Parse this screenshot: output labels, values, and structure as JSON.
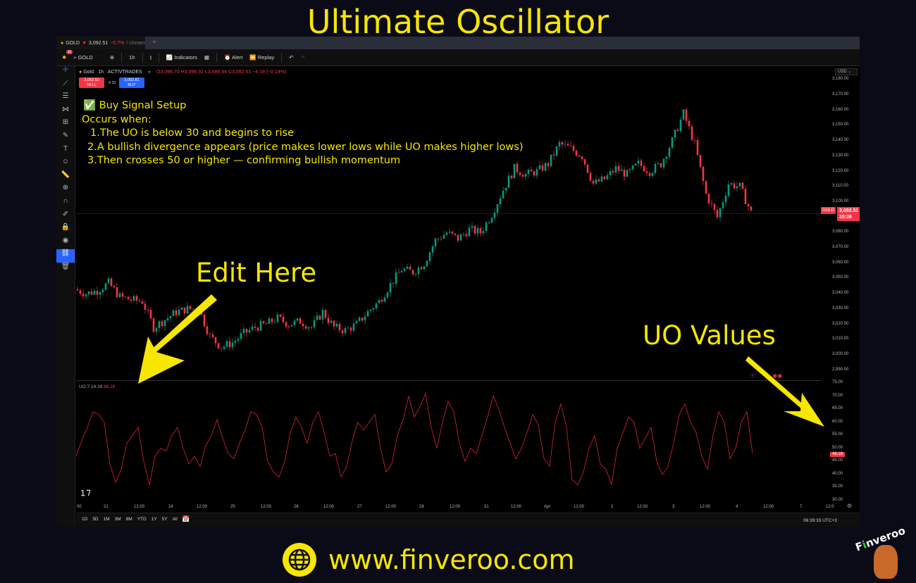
{
  "title": "Ultimate Oscillator",
  "tab": {
    "symbol": "GOLD",
    "arrow": "▼",
    "price": "3,092.51",
    "change": "−0.7%",
    "suffix": "/ Unnam",
    "add": "+"
  },
  "toolbar": {
    "badge": "11",
    "search": "GOLD",
    "interval": "1h",
    "indicators": "Indicators",
    "alert": "Alert",
    "replay": "Replay"
  },
  "legend": {
    "name": "Gold · 1h · ACTIVTRADES",
    "ohlc": "O3,096.70 H3,098.92 L3,086.94 C3,092.51 −4.19 (−0.14%)",
    "sell_price": "3,092.50",
    "sell": "SELL",
    "spread": "0.31",
    "buy_price": "3,092.81",
    "buy": "BUY"
  },
  "currency": "USD",
  "price_axis": [
    "3,180.00",
    "3,170.00",
    "3,160.00",
    "3,150.00",
    "3,140.00",
    "3,130.00",
    "3,120.00",
    "3,110.00",
    "3,100.00",
    "3,080.00",
    "3,070.00",
    "3,060.00",
    "3,050.00",
    "3,040.00",
    "3,030.00",
    "3,020.00",
    "3,010.00",
    "3,000.00",
    "2,990.00"
  ],
  "price_tag": {
    "symbol": "GOLD",
    "price": "3,092.51",
    "countdown": "20:26"
  },
  "uo": {
    "label": "UO 7 14 28",
    "value": "48.16",
    "axis": [
      "75.00",
      "70.00",
      "65.00",
      "60.00",
      "55.00",
      "50.00",
      "45.00",
      "40.00",
      "35.00",
      "30.00"
    ]
  },
  "time_axis": [
    "00",
    "21",
    "12:00",
    "24",
    "12:00",
    "25",
    "12:00",
    "26",
    "12:00",
    "27",
    "12:00",
    "28",
    "12:00",
    "31",
    "12:00",
    "Apr",
    "12:00",
    "2",
    "12:00",
    "3",
    "12:00",
    "4",
    "12:00",
    "7",
    "12:0"
  ],
  "ranges": [
    "1D",
    "5D",
    "1M",
    "3M",
    "6M",
    "YTD",
    "1Y",
    "5Y",
    "All"
  ],
  "clock": "06:39:33 UTC+3",
  "colors": {
    "up": "#089981",
    "down": "#f23645",
    "annotation": "#f7e600",
    "uo_line": "#c2202b"
  },
  "annotation": {
    "heading": "✅ Buy Signal Setup",
    "sub": "Occurs when:",
    "points": [
      "1.The UO is below 30 and begins to rise",
      "2.A bullish divergence appears (price makes lower lows while UO makes higher lows)",
      "3.Then crosses 50 or higher — confirming bullish momentum"
    ],
    "edit": "Edit Here",
    "values": "UO Values"
  },
  "footer": {
    "url": "www.finveroo.com",
    "logo": "Finveroo"
  },
  "closes": [
    3043,
    3040,
    3042,
    3047,
    3038,
    3036,
    3035,
    3018,
    3023,
    3028,
    3030,
    3030,
    3012,
    3005,
    3008,
    3014,
    3018,
    3020,
    3024,
    3020,
    3022,
    3018,
    3028,
    3018,
    3016,
    3020,
    3028,
    3035,
    3046,
    3056,
    3054,
    3060,
    3075,
    3080,
    3076,
    3082,
    3080,
    3092,
    3108,
    3122,
    3118,
    3120,
    3125,
    3138,
    3135,
    3130,
    3112,
    3115,
    3122,
    3118,
    3125,
    3120,
    3125,
    3140,
    3158,
    3138,
    3105,
    3090,
    3112,
    3110,
    3093
  ],
  "uo_values": [
    47,
    53,
    58,
    64,
    63,
    60,
    44,
    37,
    42,
    52,
    55,
    58,
    45,
    36,
    47,
    50,
    49,
    55,
    58,
    50,
    44,
    47,
    43,
    51,
    55,
    61,
    54,
    48,
    46,
    52,
    57,
    64,
    63,
    58,
    45,
    41,
    39,
    45,
    56,
    62,
    58,
    52,
    60,
    64,
    56,
    47,
    48,
    39,
    43,
    53,
    60,
    57,
    60,
    63,
    50,
    41,
    44,
    55,
    61,
    70,
    62,
    66,
    71,
    58,
    50,
    60,
    68,
    64,
    52,
    45,
    50,
    48,
    55,
    62,
    70,
    65,
    58,
    52,
    46,
    50,
    56,
    63,
    59,
    46,
    43,
    60,
    67,
    58,
    38,
    36,
    41,
    50,
    55,
    44,
    42,
    36,
    50,
    56,
    62,
    60,
    50,
    54,
    58,
    45,
    40,
    43,
    52,
    63,
    67,
    60,
    56,
    47,
    42,
    55,
    64,
    60,
    46,
    50,
    60,
    64,
    48.16
  ]
}
